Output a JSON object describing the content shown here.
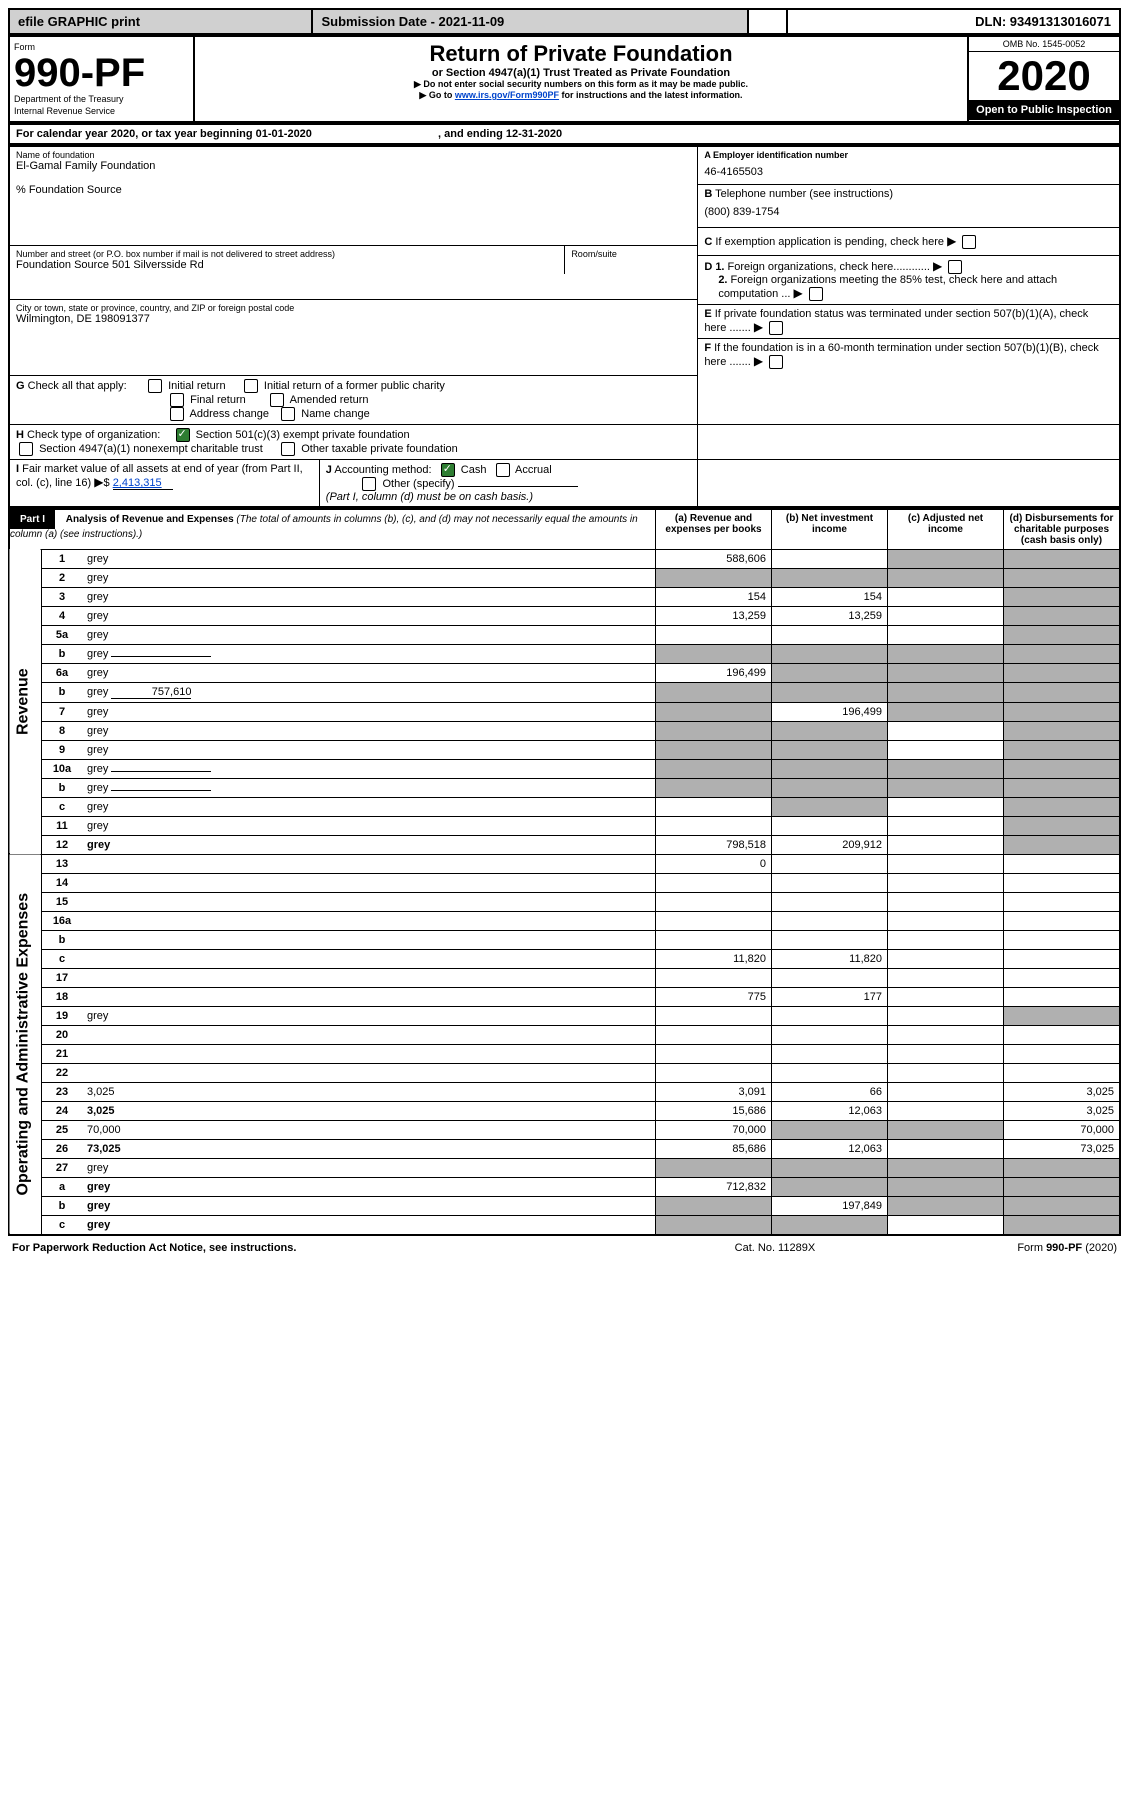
{
  "top": {
    "efile": "efile GRAPHIC print",
    "subdate_label": "Submission Date - 2021-11-09",
    "dln_label": "DLN: 93491313016071"
  },
  "header": {
    "form_label": "Form",
    "form_num": "990-PF",
    "dept": "Department of the Treasury",
    "irs": "Internal Revenue Service",
    "title": "Return of Private Foundation",
    "subtitle": "or Section 4947(a)(1) Trust Treated as Private Foundation",
    "note1": "▶ Do not enter social security numbers on this form as it may be made public.",
    "note2_pre": "▶ Go to ",
    "note2_link": "www.irs.gov/Form990PF",
    "note2_post": " for instructions and the latest information.",
    "omb": "OMB No. 1545-0052",
    "year": "2020",
    "open": "Open to Public Inspection"
  },
  "period": {
    "text_a": "For calendar year 2020, or tax year beginning 01-01-2020",
    "text_b": ", and ending 12-31-2020"
  },
  "info": {
    "name_label": "Name of foundation",
    "name": "El-Gamal Family Foundation",
    "care_of": "% Foundation Source",
    "addr_label": "Number and street (or P.O. box number if mail is not delivered to street address)",
    "addr": "Foundation Source 501 Silversside Rd",
    "room_label": "Room/suite",
    "city_label": "City or town, state or province, country, and ZIP or foreign postal code",
    "city": "Wilmington, DE  198091377",
    "ein_label": "A Employer identification number",
    "ein": "46-4165503",
    "tel_label_b": "B",
    "tel_label": " Telephone number (see instructions)",
    "tel": "(800) 839-1754",
    "c_label": "C",
    "c_text": " If exemption application is pending, check here",
    "d1_label": "D 1.",
    "d1_text": " Foreign organizations, check here............",
    "d2_label": "2.",
    "d2_text": " Foreign organizations meeting the 85% test, check here and attach computation ...",
    "e_label": "E",
    "e_text": " If private foundation status was terminated under section 507(b)(1)(A), check here .......",
    "f_label": "F",
    "f_text": " If the foundation is in a 60-month termination under section 507(b)(1)(B), check here .......",
    "g_label": "G",
    "g_text": " Check all that apply:",
    "g_opts": [
      "Initial return",
      "Initial return of a former public charity",
      "Final return",
      "Amended return",
      "Address change",
      "Name change"
    ],
    "h_label": "H",
    "h_text": " Check type of organization:",
    "h_opt1": "Section 501(c)(3) exempt private foundation",
    "h_opt2": "Section 4947(a)(1) nonexempt charitable trust",
    "h_opt3": "Other taxable private foundation",
    "i_label": "I",
    "i_text": " Fair market value of all assets at end of year (from Part II, col. (c), line 16)",
    "i_val": "2,413,315",
    "j_label": "J",
    "j_text": " Accounting method:",
    "j_cash": "Cash",
    "j_accrual": "Accrual",
    "j_other": "Other (specify)",
    "j_note": "(Part I, column (d) must be on cash basis.)"
  },
  "part1": {
    "label": "Part I",
    "title": "Analysis of Revenue and Expenses",
    "title_note": " (The total of amounts in columns (b), (c), and (d) may not necessarily equal the amounts in column (a) (see instructions).)",
    "col_a": "(a)  Revenue and expenses per books",
    "col_b": "(b)  Net investment income",
    "col_c": "(c)  Adjusted net income",
    "col_d": "(d)  Disbursements for charitable purposes (cash basis only)",
    "sec_rev": "Revenue",
    "sec_exp": "Operating and Administrative Expenses"
  },
  "rows": [
    {
      "n": "1",
      "d": "grey",
      "a": "588,606",
      "b": "",
      "c": "grey"
    },
    {
      "n": "2",
      "d": "grey",
      "a": "grey",
      "b": "grey",
      "c": "grey"
    },
    {
      "n": "3",
      "d": "grey",
      "a": "154",
      "b": "154",
      "c": ""
    },
    {
      "n": "4",
      "d": "grey",
      "a": "13,259",
      "b": "13,259",
      "c": ""
    },
    {
      "n": "5a",
      "d": "grey",
      "a": "",
      "b": "",
      "c": ""
    },
    {
      "n": "b",
      "d": "grey",
      "a": "grey",
      "b": "grey",
      "c": "grey",
      "inline": true
    },
    {
      "n": "6a",
      "d": "grey",
      "a": "196,499",
      "b": "grey",
      "c": "grey"
    },
    {
      "n": "b",
      "d": "grey",
      "a": "grey",
      "b": "grey",
      "c": "grey",
      "inline_val": "757,610"
    },
    {
      "n": "7",
      "d": "grey",
      "a": "grey",
      "b": "196,499",
      "c": "grey"
    },
    {
      "n": "8",
      "d": "grey",
      "a": "grey",
      "b": "grey",
      "c": ""
    },
    {
      "n": "9",
      "d": "grey",
      "a": "grey",
      "b": "grey",
      "c": ""
    },
    {
      "n": "10a",
      "d": "grey",
      "a": "grey",
      "b": "grey",
      "c": "grey",
      "inline": true
    },
    {
      "n": "b",
      "d": "grey",
      "a": "grey",
      "b": "grey",
      "c": "grey",
      "inline": true
    },
    {
      "n": "c",
      "d": "grey",
      "a": "",
      "b": "grey",
      "c": ""
    },
    {
      "n": "11",
      "d": "grey",
      "a": "",
      "b": "",
      "c": ""
    },
    {
      "n": "12",
      "d": "grey",
      "a": "798,518",
      "b": "209,912",
      "c": "",
      "bold": true
    }
  ],
  "rows_exp": [
    {
      "n": "13",
      "d": "",
      "a": "0",
      "b": "",
      "c": ""
    },
    {
      "n": "14",
      "d": "",
      "a": "",
      "b": "",
      "c": ""
    },
    {
      "n": "15",
      "d": "",
      "a": "",
      "b": "",
      "c": ""
    },
    {
      "n": "16a",
      "d": "",
      "a": "",
      "b": "",
      "c": ""
    },
    {
      "n": "b",
      "d": "",
      "a": "",
      "b": "",
      "c": ""
    },
    {
      "n": "c",
      "d": "",
      "a": "11,820",
      "b": "11,820",
      "c": ""
    },
    {
      "n": "17",
      "d": "",
      "a": "",
      "b": "",
      "c": ""
    },
    {
      "n": "18",
      "d": "",
      "a": "775",
      "b": "177",
      "c": ""
    },
    {
      "n": "19",
      "d": "grey",
      "a": "",
      "b": "",
      "c": ""
    },
    {
      "n": "20",
      "d": "",
      "a": "",
      "b": "",
      "c": ""
    },
    {
      "n": "21",
      "d": "",
      "a": "",
      "b": "",
      "c": ""
    },
    {
      "n": "22",
      "d": "",
      "a": "",
      "b": "",
      "c": ""
    },
    {
      "n": "23",
      "d": "3,025",
      "a": "3,091",
      "b": "66",
      "c": ""
    },
    {
      "n": "24",
      "d": "3,025",
      "a": "15,686",
      "b": "12,063",
      "c": "",
      "bold": true
    },
    {
      "n": "25",
      "d": "70,000",
      "a": "70,000",
      "b": "grey",
      "c": "grey"
    },
    {
      "n": "26",
      "d": "73,025",
      "a": "85,686",
      "b": "12,063",
      "c": "",
      "bold": true
    },
    {
      "n": "27",
      "d": "grey",
      "a": "grey",
      "b": "grey",
      "c": "grey"
    },
    {
      "n": "a",
      "d": "grey",
      "a": "712,832",
      "b": "grey",
      "c": "grey",
      "bold": true
    },
    {
      "n": "b",
      "d": "grey",
      "a": "grey",
      "b": "197,849",
      "c": "grey",
      "bold": true
    },
    {
      "n": "c",
      "d": "grey",
      "a": "grey",
      "b": "grey",
      "c": "",
      "bold": true
    }
  ],
  "footer": {
    "left": "For Paperwork Reduction Act Notice, see instructions.",
    "mid": "Cat. No. 11289X",
    "right": "Form 990-PF (2020)"
  }
}
